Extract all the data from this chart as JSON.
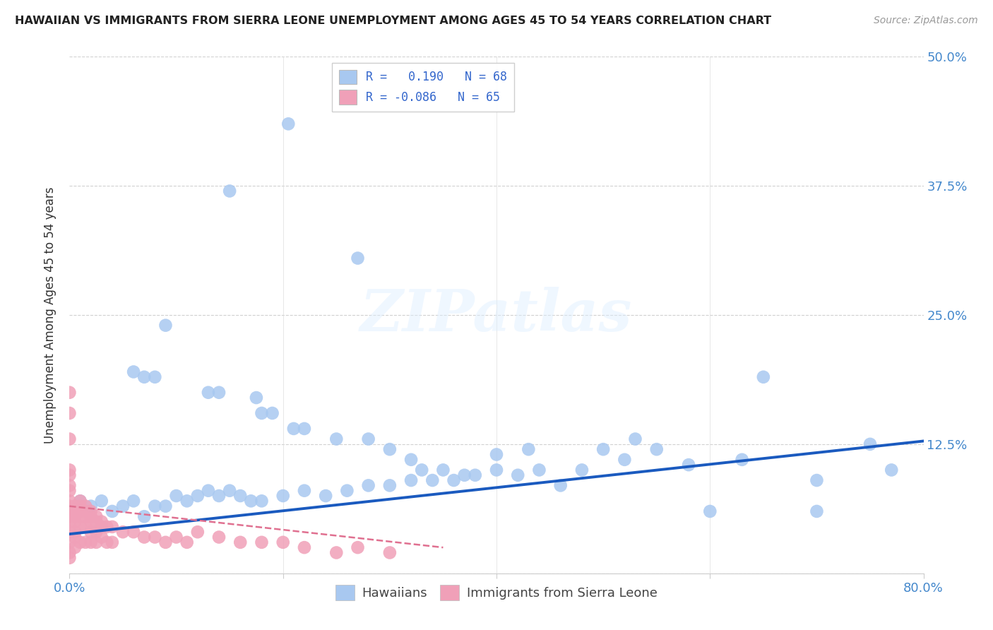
{
  "title": "HAWAIIAN VS IMMIGRANTS FROM SIERRA LEONE UNEMPLOYMENT AMONG AGES 45 TO 54 YEARS CORRELATION CHART",
  "source": "Source: ZipAtlas.com",
  "ylabel": "Unemployment Among Ages 45 to 54 years",
  "xlim": [
    0.0,
    0.8
  ],
  "ylim": [
    0.0,
    0.5
  ],
  "watermark": "ZIPatlas",
  "legend_R1": "R =   0.190",
  "legend_N1": "N = 68",
  "legend_R2": "R = -0.086",
  "legend_N2": "N = 65",
  "hawaiian_color": "#a8c8f0",
  "sierra_leone_color": "#f0a0b8",
  "trendline_hawaiian_color": "#1a5abf",
  "trendline_sierra_leone_color": "#e07090",
  "background_color": "#ffffff",
  "grid_color": "#cccccc",
  "haw_trend_x0": 0.0,
  "haw_trend_y0": 0.038,
  "haw_trend_x1": 0.8,
  "haw_trend_y1": 0.128,
  "sl_trend_x0": 0.0,
  "sl_trend_y0": 0.065,
  "sl_trend_x1": 0.35,
  "sl_trend_y1": 0.025,
  "hawaiian_x": [
    0.205,
    0.15,
    0.27,
    0.09,
    0.06,
    0.07,
    0.08,
    0.13,
    0.14,
    0.175,
    0.18,
    0.19,
    0.21,
    0.22,
    0.25,
    0.28,
    0.3,
    0.32,
    0.33,
    0.35,
    0.37,
    0.4,
    0.43,
    0.46,
    0.5,
    0.53,
    0.55,
    0.6,
    0.65,
    0.7,
    0.75,
    0.01,
    0.02,
    0.03,
    0.04,
    0.05,
    0.06,
    0.07,
    0.08,
    0.09,
    0.1,
    0.11,
    0.12,
    0.13,
    0.14,
    0.15,
    0.16,
    0.17,
    0.18,
    0.2,
    0.22,
    0.24,
    0.26,
    0.28,
    0.3,
    0.32,
    0.34,
    0.36,
    0.38,
    0.4,
    0.42,
    0.44,
    0.48,
    0.52,
    0.58,
    0.63,
    0.7,
    0.77
  ],
  "hawaiian_y": [
    0.435,
    0.37,
    0.305,
    0.24,
    0.195,
    0.19,
    0.19,
    0.175,
    0.175,
    0.17,
    0.155,
    0.155,
    0.14,
    0.14,
    0.13,
    0.13,
    0.12,
    0.11,
    0.1,
    0.1,
    0.095,
    0.115,
    0.12,
    0.085,
    0.12,
    0.13,
    0.12,
    0.06,
    0.19,
    0.06,
    0.125,
    0.07,
    0.065,
    0.07,
    0.06,
    0.065,
    0.07,
    0.055,
    0.065,
    0.065,
    0.075,
    0.07,
    0.075,
    0.08,
    0.075,
    0.08,
    0.075,
    0.07,
    0.07,
    0.075,
    0.08,
    0.075,
    0.08,
    0.085,
    0.085,
    0.09,
    0.09,
    0.09,
    0.095,
    0.1,
    0.095,
    0.1,
    0.1,
    0.11,
    0.105,
    0.11,
    0.09,
    0.1
  ],
  "sl_x": [
    0.0,
    0.0,
    0.0,
    0.0,
    0.0,
    0.0,
    0.0,
    0.0,
    0.0,
    0.0,
    0.005,
    0.005,
    0.005,
    0.005,
    0.005,
    0.01,
    0.01,
    0.01,
    0.01,
    0.015,
    0.015,
    0.015,
    0.02,
    0.02,
    0.02,
    0.025,
    0.025,
    0.03,
    0.03,
    0.035,
    0.035,
    0.04,
    0.04,
    0.05,
    0.06,
    0.07,
    0.08,
    0.09,
    0.1,
    0.11,
    0.12,
    0.14,
    0.16,
    0.18,
    0.2,
    0.22,
    0.25,
    0.27,
    0.3,
    0.005,
    0.01,
    0.015,
    0.02,
    0.025,
    0.03,
    0.0,
    0.0,
    0.0,
    0.0,
    0.0,
    0.005,
    0.01,
    0.015,
    0.02,
    0.025
  ],
  "sl_y": [
    0.175,
    0.155,
    0.13,
    0.1,
    0.085,
    0.065,
    0.055,
    0.04,
    0.03,
    0.015,
    0.055,
    0.05,
    0.04,
    0.035,
    0.025,
    0.06,
    0.055,
    0.045,
    0.03,
    0.055,
    0.045,
    0.03,
    0.05,
    0.04,
    0.03,
    0.04,
    0.03,
    0.045,
    0.035,
    0.045,
    0.03,
    0.045,
    0.03,
    0.04,
    0.04,
    0.035,
    0.035,
    0.03,
    0.035,
    0.03,
    0.04,
    0.035,
    0.03,
    0.03,
    0.03,
    0.025,
    0.02,
    0.025,
    0.02,
    0.06,
    0.065,
    0.06,
    0.055,
    0.05,
    0.05,
    0.095,
    0.08,
    0.07,
    0.05,
    0.02,
    0.065,
    0.07,
    0.065,
    0.06,
    0.055
  ]
}
